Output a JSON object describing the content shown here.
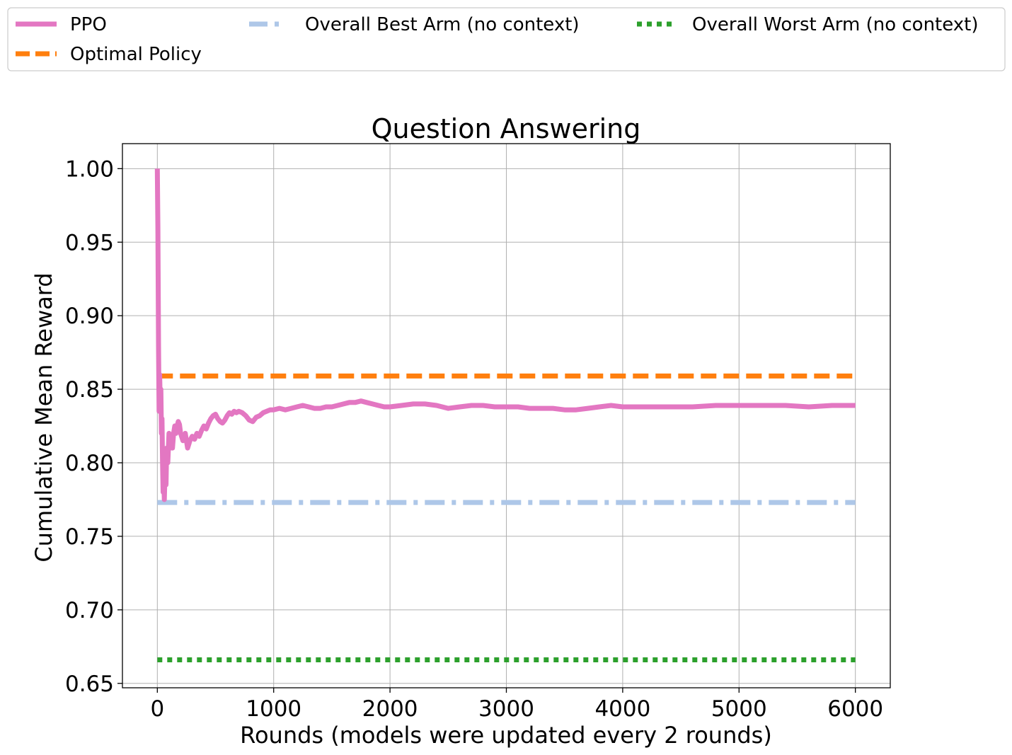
{
  "chart_data": {
    "type": "line",
    "title": "Question Answering",
    "xlabel": "Rounds (models were updated every 2 rounds)",
    "ylabel": "Cumulative Mean Reward",
    "xlim": [
      -300,
      6300
    ],
    "ylim": [
      0.647,
      1.017
    ],
    "xticks": [
      0,
      1000,
      2000,
      3000,
      4000,
      5000,
      6000
    ],
    "xtick_labels": [
      "0",
      "1000",
      "2000",
      "3000",
      "4000",
      "5000",
      "6000"
    ],
    "yticks": [
      0.65,
      0.7,
      0.75,
      0.8,
      0.85,
      0.9,
      0.95,
      1.0
    ],
    "ytick_labels": [
      "0.65",
      "0.70",
      "0.75",
      "0.80",
      "0.85",
      "0.90",
      "0.95",
      "1.00"
    ],
    "grid": true,
    "legend_placement": "top, above plot, 3 columns",
    "series": [
      {
        "name": "PPO",
        "style": "solid",
        "color": "#e377c2",
        "x": [
          0,
          5,
          10,
          15,
          20,
          25,
          30,
          35,
          40,
          45,
          50,
          55,
          60,
          65,
          70,
          75,
          80,
          90,
          100,
          110,
          120,
          130,
          140,
          150,
          160,
          170,
          180,
          190,
          200,
          220,
          240,
          260,
          280,
          300,
          320,
          340,
          360,
          380,
          400,
          420,
          440,
          460,
          480,
          500,
          520,
          540,
          560,
          580,
          600,
          620,
          640,
          660,
          680,
          700,
          730,
          760,
          790,
          820,
          850,
          880,
          910,
          940,
          970,
          1000,
          1050,
          1100,
          1150,
          1200,
          1250,
          1300,
          1350,
          1400,
          1450,
          1500,
          1550,
          1600,
          1650,
          1700,
          1750,
          1800,
          1850,
          1900,
          1950,
          2000,
          2100,
          2200,
          2300,
          2400,
          2500,
          2600,
          2700,
          2800,
          2900,
          3000,
          3100,
          3200,
          3300,
          3400,
          3500,
          3600,
          3700,
          3800,
          3900,
          4000,
          4200,
          4400,
          4600,
          4800,
          5000,
          5200,
          5400,
          5600,
          5800,
          6000
        ],
        "y": [
          1.0,
          0.96,
          0.88,
          0.835,
          0.86,
          0.84,
          0.85,
          0.82,
          0.83,
          0.8,
          0.78,
          0.79,
          0.775,
          0.79,
          0.8,
          0.785,
          0.81,
          0.8,
          0.82,
          0.81,
          0.815,
          0.81,
          0.82,
          0.825,
          0.82,
          0.825,
          0.828,
          0.826,
          0.82,
          0.815,
          0.82,
          0.81,
          0.815,
          0.818,
          0.816,
          0.82,
          0.818,
          0.822,
          0.825,
          0.823,
          0.827,
          0.83,
          0.832,
          0.833,
          0.83,
          0.828,
          0.827,
          0.829,
          0.832,
          0.834,
          0.833,
          0.835,
          0.834,
          0.835,
          0.834,
          0.832,
          0.829,
          0.828,
          0.831,
          0.832,
          0.834,
          0.835,
          0.836,
          0.836,
          0.837,
          0.836,
          0.837,
          0.838,
          0.839,
          0.838,
          0.837,
          0.837,
          0.838,
          0.838,
          0.839,
          0.84,
          0.841,
          0.841,
          0.842,
          0.841,
          0.84,
          0.839,
          0.838,
          0.838,
          0.839,
          0.84,
          0.84,
          0.839,
          0.837,
          0.838,
          0.839,
          0.839,
          0.838,
          0.838,
          0.838,
          0.837,
          0.837,
          0.837,
          0.836,
          0.836,
          0.837,
          0.838,
          0.839,
          0.838,
          0.838,
          0.838,
          0.838,
          0.839,
          0.839,
          0.839,
          0.839,
          0.838,
          0.839,
          0.839
        ]
      },
      {
        "name": "Optimal Policy",
        "style": "dashed",
        "color": "#ff7f0e",
        "x": [
          0,
          6000
        ],
        "y": [
          0.859,
          0.859
        ]
      },
      {
        "name": "Overall Best Arm (no context)",
        "style": "dashdot",
        "color": "#aec7e8",
        "x": [
          0,
          6000
        ],
        "y": [
          0.773,
          0.773
        ]
      },
      {
        "name": "Overall Worst Arm (no context)",
        "style": "dotted",
        "color": "#2ca02c",
        "x": [
          0,
          6000
        ],
        "y": [
          0.666,
          0.666
        ]
      }
    ]
  }
}
